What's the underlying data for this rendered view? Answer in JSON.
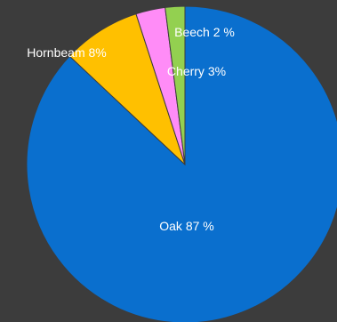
{
  "chart_data": {
    "type": "pie",
    "start_angle_deg": 0,
    "direction": "clockwise",
    "slices": [
      {
        "name": "Oak",
        "label": "Oak 87 %",
        "value": 87,
        "color": "#0a6fce"
      },
      {
        "name": "Hornbeam",
        "label": "Hornbeam 8%",
        "value": 8,
        "color": "#ffc000"
      },
      {
        "name": "Cherry",
        "label": "Cherry 3%",
        "value": 3,
        "color": "#ff8cf7"
      },
      {
        "name": "Beech",
        "label": "Beech 2 %",
        "value": 2,
        "color": "#93d050"
      }
    ],
    "slice_border_color": "#3c3c3c",
    "label_color": "#ffffff"
  }
}
